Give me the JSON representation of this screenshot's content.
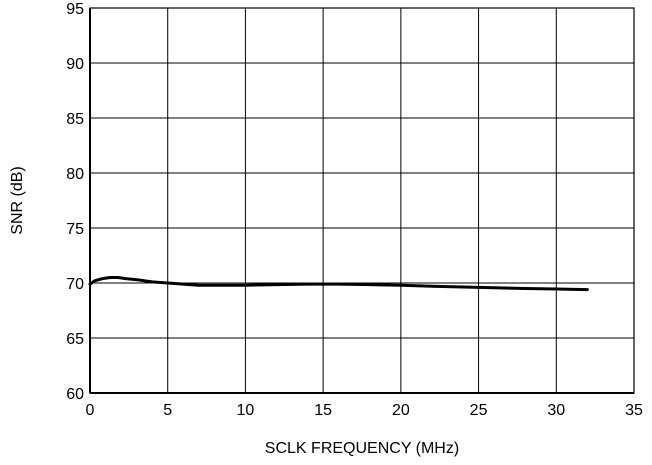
{
  "chart_data": {
    "type": "line",
    "title": "",
    "xlabel": "SCLK FREQUENCY (MHz)",
    "ylabel": "SNR (dB)",
    "xlim": [
      0,
      35
    ],
    "ylim": [
      60,
      95
    ],
    "xticks": [
      0,
      5,
      10,
      15,
      20,
      25,
      30,
      35
    ],
    "yticks": [
      60,
      65,
      70,
      75,
      80,
      85,
      90,
      95
    ],
    "grid": true,
    "series": [
      {
        "x": [
          0,
          0.3,
          0.8,
          1.3,
          1.8,
          2.3,
          3,
          4,
          5,
          6,
          7,
          8,
          9,
          10,
          12,
          14,
          15,
          16,
          18,
          20,
          22,
          25,
          28,
          30,
          32
        ],
        "y": [
          69.9,
          70.2,
          70.4,
          70.5,
          70.5,
          70.4,
          70.3,
          70.1,
          70.0,
          69.9,
          69.8,
          69.8,
          69.8,
          69.8,
          69.85,
          69.9,
          69.9,
          69.9,
          69.85,
          69.8,
          69.7,
          69.6,
          69.5,
          69.45,
          69.4
        ]
      }
    ]
  }
}
